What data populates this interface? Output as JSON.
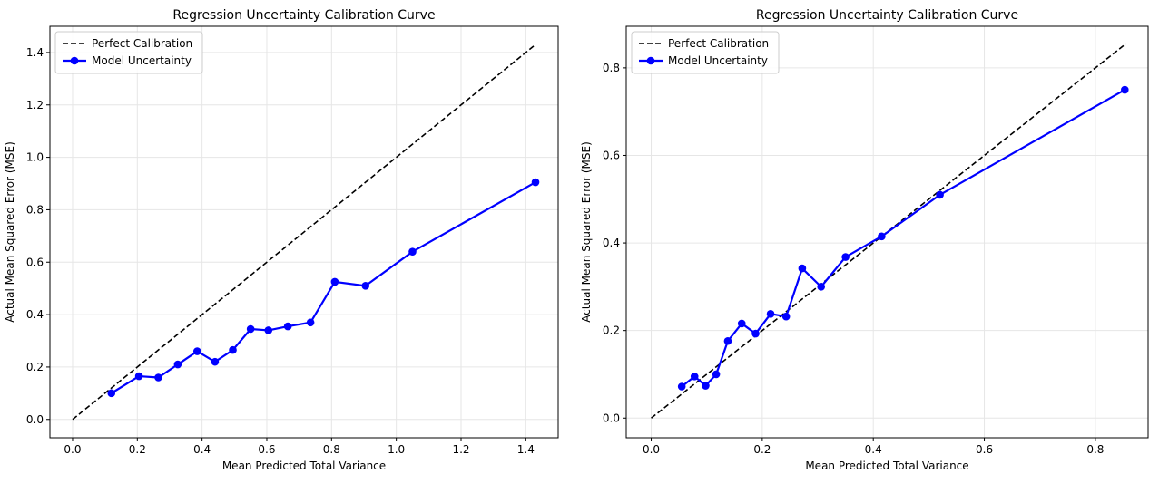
{
  "chart_data": [
    {
      "type": "line",
      "title": "Regression Uncertainty Calibration Curve",
      "xlabel": "Mean Predicted Total Variance",
      "ylabel": "Actual Mean Squared Error (MSE)",
      "xlim": [
        -0.07,
        1.5
      ],
      "ylim": [
        -0.07,
        1.5
      ],
      "xticks": [
        0.0,
        0.2,
        0.4,
        0.6,
        0.8,
        1.0,
        1.2,
        1.4
      ],
      "yticks": [
        0.0,
        0.2,
        0.4,
        0.6,
        0.8,
        1.0,
        1.2,
        1.4
      ],
      "grid": true,
      "legend": "top-left",
      "series": [
        {
          "name": "Perfect Calibration",
          "style": "dashed",
          "color": "#000000",
          "x": [
            0.0,
            1.43
          ],
          "y": [
            0.0,
            1.43
          ]
        },
        {
          "name": "Model Uncertainty",
          "style": "solid-marker",
          "color": "#0000ff",
          "x": [
            0.12,
            0.205,
            0.265,
            0.325,
            0.385,
            0.44,
            0.495,
            0.55,
            0.605,
            0.665,
            0.735,
            0.81,
            0.905,
            1.05,
            1.43
          ],
          "y": [
            0.1,
            0.165,
            0.16,
            0.21,
            0.26,
            0.22,
            0.265,
            0.345,
            0.34,
            0.355,
            0.37,
            0.525,
            0.51,
            0.64,
            0.905
          ]
        }
      ]
    },
    {
      "type": "line",
      "title": "Regression Uncertainty Calibration Curve",
      "xlabel": "Mean Predicted Total Variance",
      "ylabel": "Actual Mean Squared Error (MSE)",
      "xlim": [
        -0.045,
        0.895
      ],
      "ylim": [
        -0.045,
        0.895
      ],
      "xticks": [
        0.0,
        0.2,
        0.4,
        0.6,
        0.8
      ],
      "yticks": [
        0.0,
        0.2,
        0.4,
        0.6,
        0.8
      ],
      "grid": true,
      "legend": "top-left",
      "series": [
        {
          "name": "Perfect Calibration",
          "style": "dashed",
          "color": "#000000",
          "x": [
            0.0,
            0.855
          ],
          "y": [
            0.0,
            0.855
          ]
        },
        {
          "name": "Model Uncertainty",
          "style": "solid-marker",
          "color": "#0000ff",
          "x": [
            0.055,
            0.078,
            0.098,
            0.117,
            0.138,
            0.163,
            0.188,
            0.215,
            0.243,
            0.272,
            0.306,
            0.35,
            0.415,
            0.52,
            0.853
          ],
          "y": [
            0.072,
            0.095,
            0.074,
            0.1,
            0.176,
            0.216,
            0.193,
            0.238,
            0.232,
            0.342,
            0.3,
            0.368,
            0.415,
            0.51,
            0.75
          ]
        }
      ]
    }
  ]
}
